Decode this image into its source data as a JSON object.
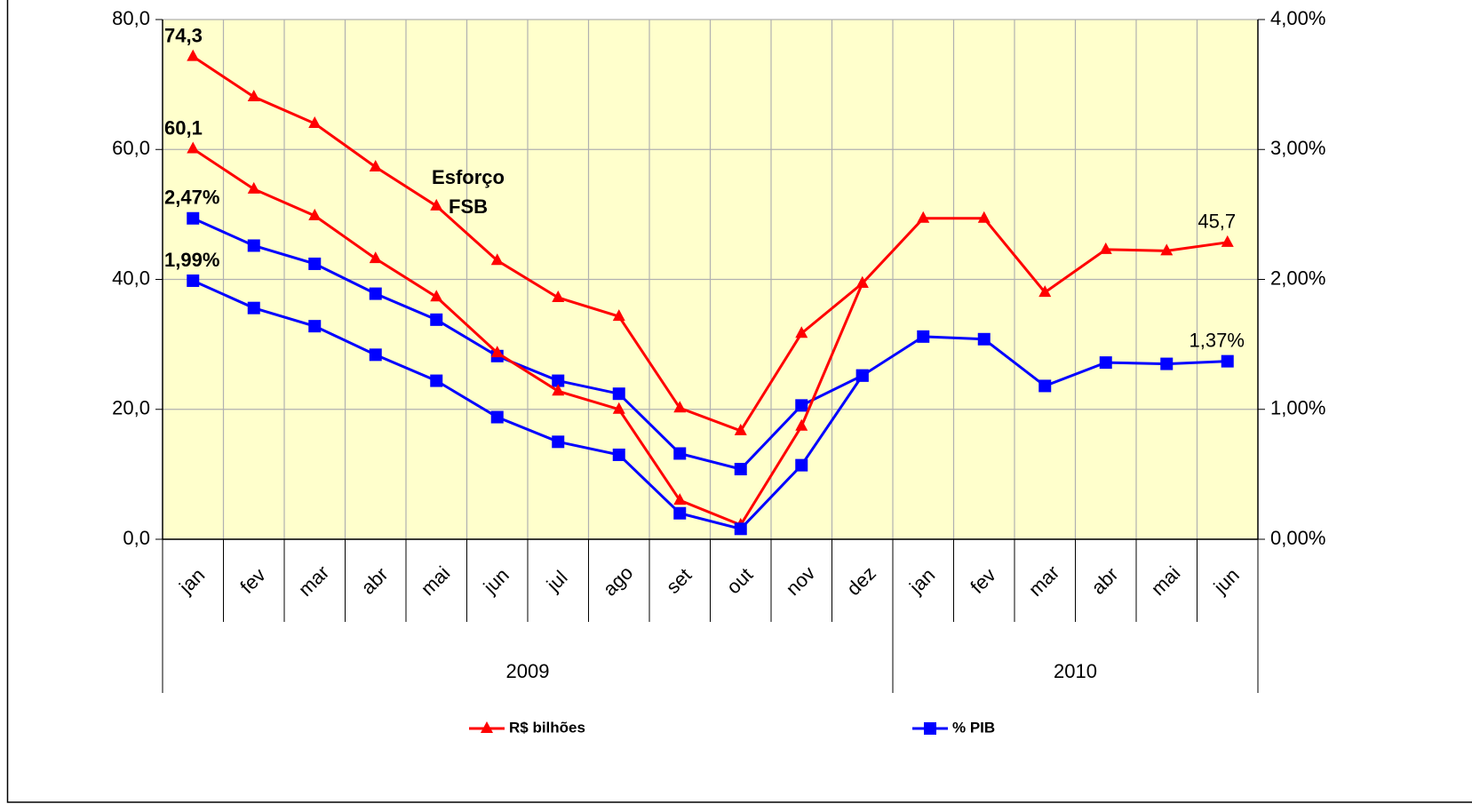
{
  "chart_data": {
    "type": "line",
    "categories": [
      "jan",
      "fev",
      "mar",
      "abr",
      "mai",
      "jun",
      "jul",
      "ago",
      "set",
      "out",
      "nov",
      "dez",
      "jan",
      "fev",
      "mar",
      "abr",
      "mai",
      "jun"
    ],
    "category_groups": [
      {
        "label": "2009",
        "span": 12
      },
      {
        "label": "2010",
        "span": 6
      }
    ],
    "annotation": [
      "Esforço",
      "FSB"
    ],
    "ylim": [
      0,
      80
    ],
    "yticks": [
      {
        "value": 0,
        "label": "0,0"
      },
      {
        "value": 20,
        "label": "20,0"
      },
      {
        "value": 40,
        "label": "40,0"
      },
      {
        "value": 60,
        "label": "60,0"
      },
      {
        "value": 80,
        "label": "80,0"
      }
    ],
    "y2lim": [
      0,
      4
    ],
    "y2ticks": [
      {
        "value": 0,
        "label": "0,00%"
      },
      {
        "value": 1,
        "label": "1,00%"
      },
      {
        "value": 2,
        "label": "2,00%"
      },
      {
        "value": 3,
        "label": "3,00%"
      },
      {
        "value": 4,
        "label": "4,00%"
      }
    ],
    "grid": true,
    "series": [
      {
        "name": "R$ bilhões",
        "color": "#ff0000",
        "marker": "triangle",
        "values": [
          74.3,
          68.1,
          64.0,
          57.3,
          51.3,
          42.9,
          37.2,
          34.3,
          20.2,
          16.7,
          31.7,
          39.4,
          49.4,
          49.4,
          38.0,
          44.6,
          44.4,
          45.7
        ],
        "value_labels": [
          "74,3",
          null,
          null,
          null,
          null,
          null,
          null,
          null,
          null,
          null,
          null,
          null,
          null,
          null,
          null,
          null,
          null,
          "45,7"
        ]
      },
      {
        "name": "% PIB",
        "color": "#0000ff",
        "marker": "square",
        "axis": "y2",
        "values": [
          2.47,
          2.26,
          2.12,
          1.89,
          1.69,
          1.41,
          1.22,
          1.12,
          0.66,
          0.54,
          1.03,
          1.26,
          1.56,
          1.54,
          1.18,
          1.36,
          1.35,
          1.37
        ],
        "value_labels": [
          "2,47%",
          null,
          null,
          null,
          null,
          null,
          null,
          null,
          null,
          null,
          null,
          null,
          null,
          null,
          null,
          null,
          null,
          "1,37%"
        ]
      },
      {
        "color": "#ff0000",
        "marker": "triangle",
        "values": [
          60.1,
          53.9,
          49.8,
          43.2,
          37.3,
          28.7,
          22.8,
          20.0,
          6.0,
          2.2,
          17.4,
          39.4,
          null,
          null,
          null,
          null,
          null,
          null
        ],
        "value_labels": [
          "60,1",
          null,
          null,
          null,
          null,
          null,
          null,
          null,
          null,
          null,
          null,
          null,
          null,
          null,
          null,
          null,
          null,
          null
        ]
      },
      {
        "color": "#0000ff",
        "marker": "square",
        "axis": "y2",
        "values": [
          1.99,
          1.78,
          1.64,
          1.42,
          1.22,
          0.94,
          0.75,
          0.65,
          0.2,
          0.08,
          0.57,
          1.26,
          null,
          null,
          null,
          null,
          null,
          null
        ],
        "value_labels": [
          "1,99%",
          null,
          null,
          null,
          null,
          null,
          null,
          null,
          null,
          null,
          null,
          null,
          null,
          null,
          null,
          null,
          null,
          null
        ]
      }
    ]
  }
}
